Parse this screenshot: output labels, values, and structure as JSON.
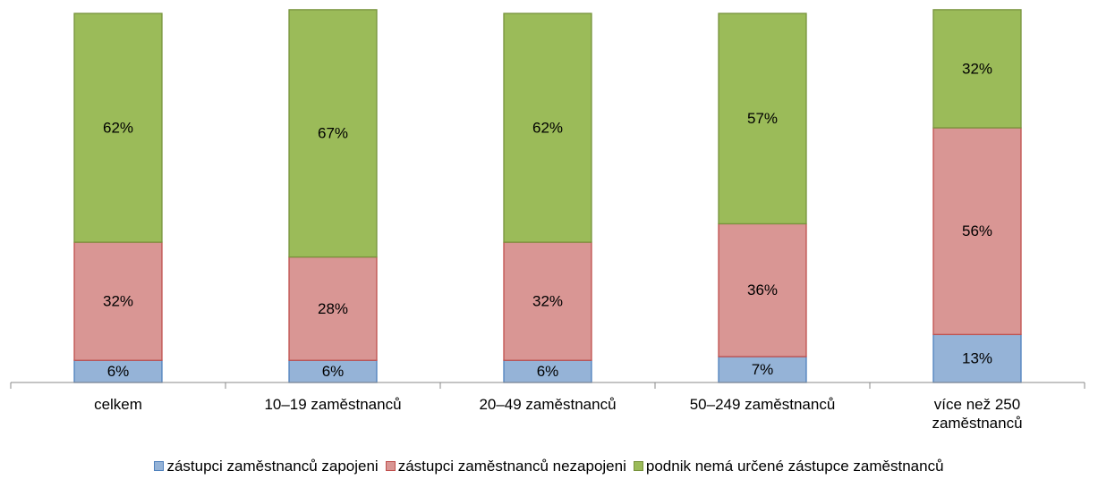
{
  "chart_data": {
    "type": "stacked_bar",
    "categories": [
      "celkem",
      "10–19 zaměstnanců",
      "20–49 zaměstnanců",
      "50–249 zaměstnanců",
      "více než 250 zaměstnanců"
    ],
    "series": [
      {
        "name": "zástupci zaměstnanců zapojeni",
        "color": "#95b3d7",
        "edge": "#4f81bd",
        "values": [
          6,
          6,
          6,
          7,
          13
        ],
        "value_labels": [
          "6%",
          "6%",
          "6%",
          "7%",
          "13%"
        ]
      },
      {
        "name": "zástupci zaměstnanců nezapojeni",
        "color": "#d99694",
        "edge": "#c0504d",
        "values": [
          32,
          28,
          32,
          36,
          56
        ],
        "value_labels": [
          "32%",
          "28%",
          "32%",
          "36%",
          "56%"
        ]
      },
      {
        "name": "podnik nemá určené zástupce zaměstnanců",
        "color": "#9bbb59",
        "edge": "#77933c",
        "values": [
          62,
          67,
          62,
          57,
          32
        ],
        "value_labels": [
          "62%",
          "67%",
          "62%",
          "57%",
          "32%"
        ]
      }
    ],
    "ylim": [
      0,
      100
    ],
    "legend": "bottom"
  }
}
